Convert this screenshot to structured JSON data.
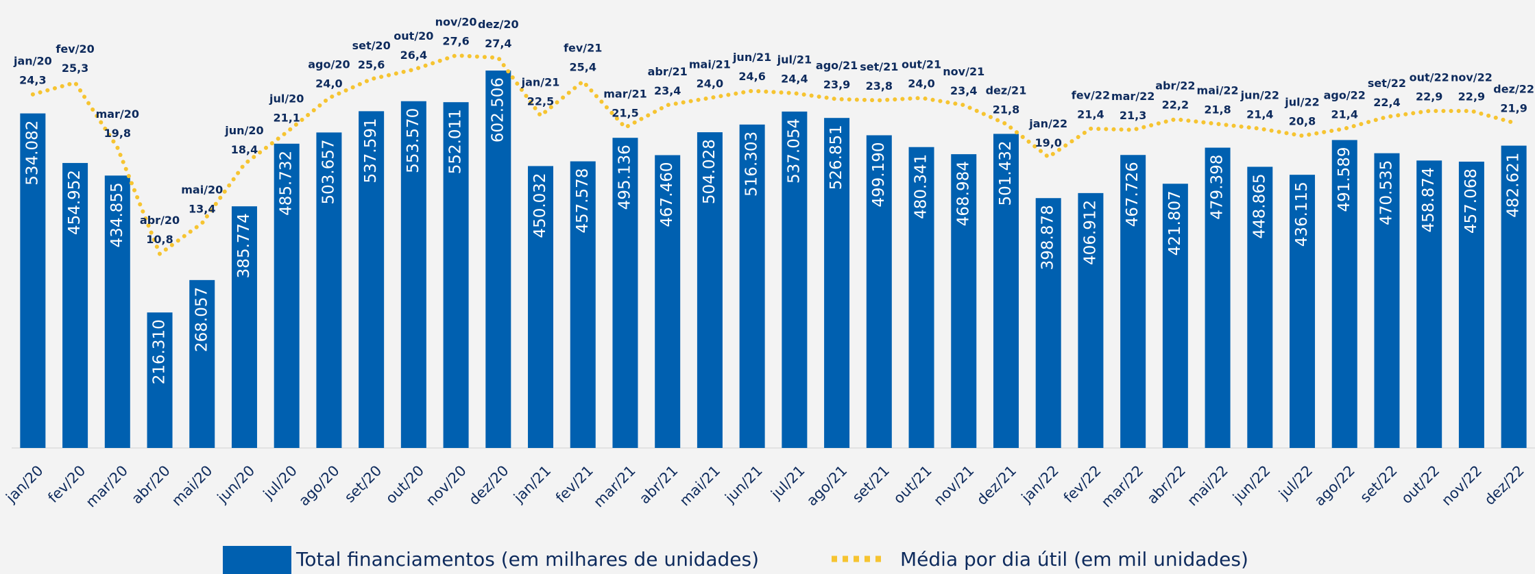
{
  "chart_data": {
    "type": "bar",
    "categories": [
      "jan/20",
      "fev/20",
      "mar/20",
      "abr/20",
      "mai/20",
      "jun/20",
      "jul/20",
      "ago/20",
      "set/20",
      "out/20",
      "nov/20",
      "dez/20",
      "jan/21",
      "fev/21",
      "mar/21",
      "abr/21",
      "mai/21",
      "jun/21",
      "jul/21",
      "ago/21",
      "set/21",
      "out/21",
      "nov/21",
      "dez/21",
      "jan/22",
      "fev/22",
      "mar/22",
      "abr/22",
      "mai/22",
      "jun/22",
      "jul/22",
      "ago/22",
      "set/22",
      "out/22",
      "nov/22",
      "dez/22"
    ],
    "ylim": [
      0,
      620000
    ],
    "y2lim": [
      0,
      32
    ],
    "series": [
      {
        "name": "Total financiamentos (em milhares de unidades)",
        "type": "bar",
        "color": "#0060b0",
        "values": [
          534082,
          454952,
          434855,
          216310,
          268057,
          385774,
          485732,
          503657,
          537591,
          553570,
          552011,
          602506,
          450032,
          457578,
          495136,
          467460,
          504028,
          516303,
          537054,
          526851,
          499190,
          480341,
          468984,
          501432,
          398878,
          406912,
          467726,
          421807,
          479398,
          448865,
          436115,
          491589,
          470535,
          458874,
          457068,
          482621
        ],
        "value_labels": [
          "534.082",
          "454.952",
          "434.855",
          "216.310",
          "268.057",
          "385.774",
          "485.732",
          "503.657",
          "537.591",
          "553.570",
          "552.011",
          "602.506",
          "450.032",
          "457.578",
          "495.136",
          "467.460",
          "504.028",
          "516.303",
          "537.054",
          "526.851",
          "499.190",
          "480.341",
          "468.984",
          "501.432",
          "398.878",
          "406.912",
          "467.726",
          "421.807",
          "479.398",
          "448.865",
          "436.115",
          "491.589",
          "470.535",
          "458.874",
          "457.068",
          "482.621"
        ]
      },
      {
        "name": "Média por dia útil (em mil unidades)",
        "type": "line",
        "axis": "y2",
        "color": "#f6c431",
        "values": [
          24.3,
          25.3,
          19.8,
          10.8,
          13.4,
          18.4,
          21.1,
          24.0,
          25.6,
          26.4,
          27.6,
          27.4,
          22.5,
          25.4,
          21.5,
          23.4,
          24.0,
          24.6,
          24.4,
          23.9,
          23.8,
          24.0,
          23.4,
          21.8,
          19.0,
          21.4,
          21.3,
          22.2,
          21.8,
          21.4,
          20.8,
          21.4,
          22.4,
          22.9,
          22.9,
          21.9
        ],
        "value_labels": [
          "24,3",
          "25,3",
          "19,8",
          "10,8",
          "13,4",
          "18,4",
          "21,1",
          "24,0",
          "25,6",
          "26,4",
          "27,6",
          "27,4",
          "22,5",
          "25,4",
          "21,5",
          "23,4",
          "24,0",
          "24,6",
          "24,4",
          "23,9",
          "23,8",
          "24,0",
          "23,4",
          "21,8",
          "19,0",
          "21,4",
          "21,3",
          "22,2",
          "21,8",
          "21,4",
          "20,8",
          "21,4",
          "22,4",
          "22,9",
          "22,9",
          "21,9"
        ]
      }
    ]
  }
}
